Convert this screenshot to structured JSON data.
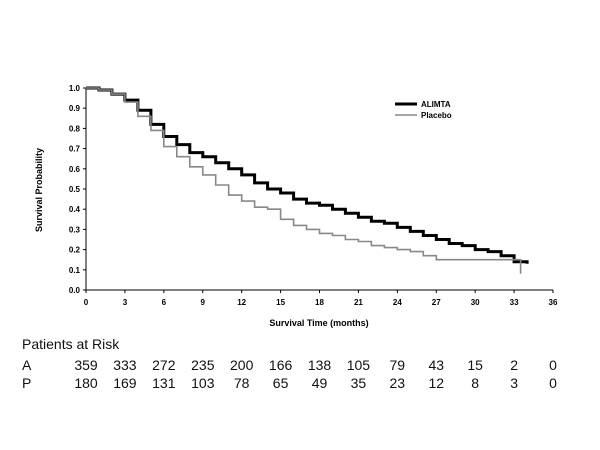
{
  "chart_data": {
    "type": "line",
    "xlabel": "Survival Time (months)",
    "ylabel": "Survival  Probability",
    "xlim": [
      0,
      36
    ],
    "ylim": [
      0,
      1.0
    ],
    "x_ticks": [
      "0",
      "3",
      "6",
      "9",
      "12",
      "15",
      "18",
      "21",
      "24",
      "27",
      "30",
      "33",
      "36"
    ],
    "y_ticks": [
      "0.0",
      "0.1",
      "0.2",
      "0.3",
      "0.4",
      "0.5",
      "0.6",
      "0.7",
      "0.8",
      "0.9",
      "1.0"
    ],
    "legend_position": "top-right",
    "grid": false,
    "series": [
      {
        "name": "ALIMTA",
        "color": "#000000",
        "x": [
          0,
          1,
          2,
          3,
          4,
          5,
          6,
          7,
          8,
          9,
          10,
          11,
          12,
          13,
          14,
          15,
          16,
          17,
          18,
          19,
          20,
          21,
          22,
          23,
          24,
          25,
          26,
          27,
          28,
          29,
          30,
          31,
          32,
          33,
          34
        ],
        "y": [
          1.0,
          0.99,
          0.97,
          0.94,
          0.89,
          0.82,
          0.76,
          0.72,
          0.68,
          0.66,
          0.63,
          0.6,
          0.57,
          0.53,
          0.5,
          0.48,
          0.45,
          0.43,
          0.42,
          0.4,
          0.38,
          0.36,
          0.34,
          0.33,
          0.31,
          0.29,
          0.27,
          0.25,
          0.23,
          0.22,
          0.2,
          0.19,
          0.17,
          0.14,
          0.13
        ]
      },
      {
        "name": "Placebo",
        "color": "#888888",
        "x": [
          0,
          1,
          2,
          3,
          4,
          5,
          6,
          7,
          8,
          9,
          10,
          11,
          12,
          13,
          14,
          15,
          16,
          17,
          18,
          19,
          20,
          21,
          22,
          23,
          24,
          25,
          26,
          27,
          28,
          29,
          30,
          31,
          32,
          33,
          33.5
        ],
        "y": [
          1.0,
          0.99,
          0.97,
          0.93,
          0.86,
          0.79,
          0.71,
          0.66,
          0.61,
          0.57,
          0.52,
          0.47,
          0.44,
          0.41,
          0.4,
          0.35,
          0.32,
          0.3,
          0.28,
          0.27,
          0.25,
          0.24,
          0.22,
          0.21,
          0.2,
          0.19,
          0.17,
          0.15,
          0.15,
          0.15,
          0.15,
          0.15,
          0.15,
          0.15,
          0.08
        ]
      }
    ]
  },
  "risk_table": {
    "title": "Patients at Risk",
    "rows": [
      {
        "label": "A",
        "values": [
          "359",
          "333",
          "272",
          "235",
          "200",
          "166",
          "138",
          "105",
          "79",
          "43",
          "15",
          "2",
          "0"
        ]
      },
      {
        "label": "P",
        "values": [
          "180",
          "169",
          "131",
          "103",
          "78",
          "65",
          "49",
          "35",
          "23",
          "12",
          "8",
          "3",
          "0"
        ]
      }
    ]
  }
}
